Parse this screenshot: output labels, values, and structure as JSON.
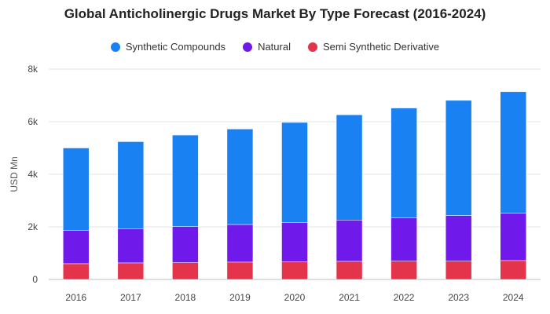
{
  "chart_data": {
    "type": "bar",
    "stacked": true,
    "title": "Global Anticholinergic Drugs Market By Type Forecast (2016-2024)",
    "xlabel": "",
    "ylabel": "USD Mn",
    "ylim": [
      0,
      8000
    ],
    "yticks": [
      0,
      2000,
      4000,
      6000,
      8000
    ],
    "ytick_labels": [
      "0",
      "2k",
      "4k",
      "6k",
      "8k"
    ],
    "grid": true,
    "legend_position": "top-center",
    "categories": [
      "2016",
      "2017",
      "2018",
      "2019",
      "2020",
      "2021",
      "2022",
      "2023",
      "2024"
    ],
    "series": [
      {
        "name": "Semi Synthetic Derivative",
        "color": "#e3344b",
        "values": [
          600,
          630,
          640,
          660,
          670,
          690,
          700,
          700,
          720
        ]
      },
      {
        "name": "Natural",
        "color": "#6f1aea",
        "values": [
          1260,
          1290,
          1370,
          1430,
          1490,
          1570,
          1640,
          1730,
          1800
        ]
      },
      {
        "name": "Synthetic Compounds",
        "color": "#1981f1",
        "values": [
          3140,
          3320,
          3480,
          3630,
          3810,
          4000,
          4180,
          4380,
          4620
        ]
      }
    ],
    "legend_order": [
      "Synthetic Compounds",
      "Natural",
      "Semi Synthetic Derivative"
    ]
  }
}
